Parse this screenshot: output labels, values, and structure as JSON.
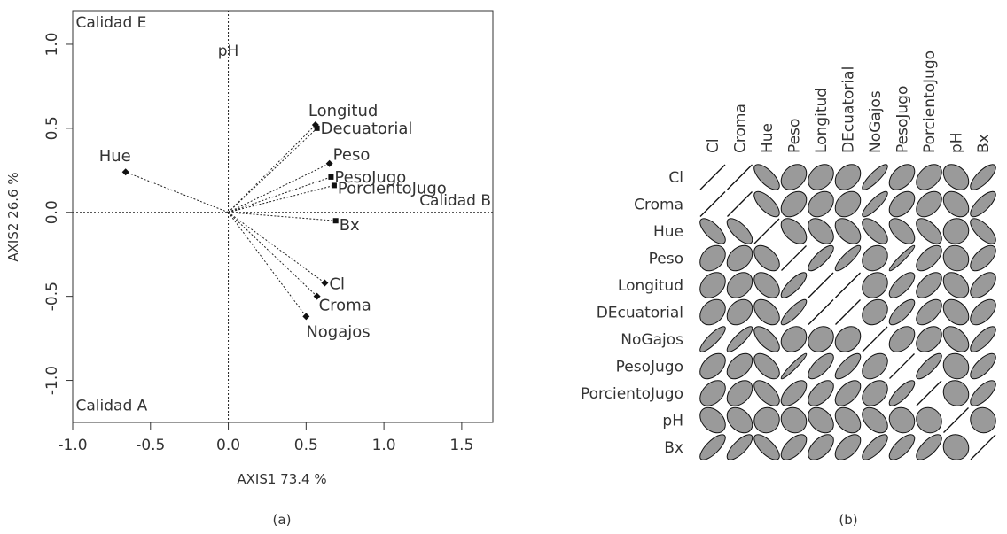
{
  "colors": {
    "ellipse_fill": "#9a9a9a",
    "ink": "#111111",
    "text": "#333333"
  },
  "chart_data": [
    {
      "type": "scatter",
      "panel_label": "(a)",
      "title": "",
      "xlabel": "AXIS1 73.4 %",
      "ylabel": "AXIS2 26.6 %",
      "xlim": [
        -1.0,
        1.7
      ],
      "ylim": [
        -1.25,
        1.2
      ],
      "xticks": [
        "-1.0",
        "-0.5",
        "0.0",
        "0.5",
        "1.0",
        "1.5"
      ],
      "xtick_values": [
        -1.0,
        -0.5,
        0.0,
        0.5,
        1.0,
        1.5
      ],
      "yticks": [
        "-1.0",
        "-0.5",
        "0.0",
        "0.5",
        "1.0"
      ],
      "ytick_values": [
        -1.0,
        -0.5,
        0.0,
        0.5,
        1.0
      ],
      "grid": false,
      "vectors": [
        {
          "name": "Hue",
          "x": -0.66,
          "y": 0.24,
          "marker": "diamond"
        },
        {
          "name": "Longitud",
          "x": 0.56,
          "y": 0.52,
          "marker": "diamond"
        },
        {
          "name": "Decuatorial",
          "x": 0.57,
          "y": 0.5,
          "marker": "square"
        },
        {
          "name": "Peso",
          "x": 0.65,
          "y": 0.29,
          "marker": "diamond"
        },
        {
          "name": "PesoJugo",
          "x": 0.66,
          "y": 0.21,
          "marker": "square"
        },
        {
          "name": "PorcientoJugo",
          "x": 0.68,
          "y": 0.16,
          "marker": "square"
        },
        {
          "name": "Bx",
          "x": 0.69,
          "y": -0.05,
          "marker": "square"
        },
        {
          "name": "Cl",
          "x": 0.62,
          "y": -0.42,
          "marker": "diamond"
        },
        {
          "name": "Croma",
          "x": 0.57,
          "y": -0.5,
          "marker": "diamond"
        },
        {
          "name": "Nogajos",
          "x": 0.5,
          "y": -0.62,
          "marker": "diamond"
        }
      ],
      "annotations": [
        {
          "text": "pH",
          "x": 0.0,
          "y": 0.93
        },
        {
          "text": "Calidad E",
          "x": -0.98,
          "y": 1.1
        },
        {
          "text": "Calidad B",
          "x": 1.2,
          "y": 0.04
        },
        {
          "text": "Calidad A",
          "x": -0.98,
          "y": -1.18
        }
      ]
    },
    {
      "type": "heatmap",
      "panel_label": "(b)",
      "title": "",
      "row_labels": [
        "Cl",
        "Croma",
        "Hue",
        "Peso",
        "Longitud",
        "DEcuatorial",
        "NoGajos",
        "PesoJugo",
        "PorcientoJugo",
        "pH",
        "Bx"
      ],
      "col_labels": [
        "Cl",
        "Croma",
        "Hue",
        "Peso",
        "Longitud",
        "DEcuatorial",
        "NoGajos",
        "PesoJugo",
        "PorcientoJugo",
        "pH",
        "Bx"
      ],
      "correlations": [
        [
          1.0,
          0.98,
          -0.7,
          0.3,
          0.3,
          0.3,
          0.85,
          0.45,
          0.4,
          -0.35,
          0.75
        ],
        [
          0.98,
          1.0,
          -0.7,
          0.35,
          0.3,
          0.3,
          0.85,
          0.45,
          0.4,
          -0.35,
          0.75
        ],
        [
          -0.7,
          -0.7,
          1.0,
          -0.5,
          -0.45,
          -0.45,
          -0.65,
          -0.55,
          -0.6,
          0.05,
          -0.7
        ],
        [
          0.3,
          0.35,
          -0.5,
          1.0,
          0.8,
          0.85,
          0.2,
          0.95,
          0.6,
          -0.1,
          0.6
        ],
        [
          0.3,
          0.3,
          -0.45,
          0.8,
          1.0,
          0.97,
          0.2,
          0.7,
          0.55,
          -0.35,
          0.55
        ],
        [
          0.3,
          0.3,
          -0.45,
          0.85,
          0.97,
          1.0,
          0.25,
          0.75,
          0.55,
          -0.35,
          0.55
        ],
        [
          0.85,
          0.85,
          -0.65,
          0.2,
          0.2,
          0.25,
          1.0,
          0.4,
          0.35,
          -0.45,
          0.75
        ],
        [
          0.45,
          0.45,
          -0.55,
          0.95,
          0.7,
          0.75,
          0.4,
          1.0,
          0.8,
          -0.1,
          0.7
        ],
        [
          0.4,
          0.4,
          -0.6,
          0.6,
          0.55,
          0.55,
          0.35,
          0.8,
          1.0,
          -0.1,
          0.7
        ],
        [
          -0.35,
          -0.35,
          0.05,
          -0.1,
          -0.35,
          -0.35,
          -0.45,
          -0.1,
          -0.1,
          1.0,
          -0.05
        ],
        [
          0.75,
          0.75,
          -0.7,
          0.6,
          0.55,
          0.55,
          0.75,
          0.7,
          0.7,
          -0.05,
          1.0
        ]
      ]
    }
  ]
}
